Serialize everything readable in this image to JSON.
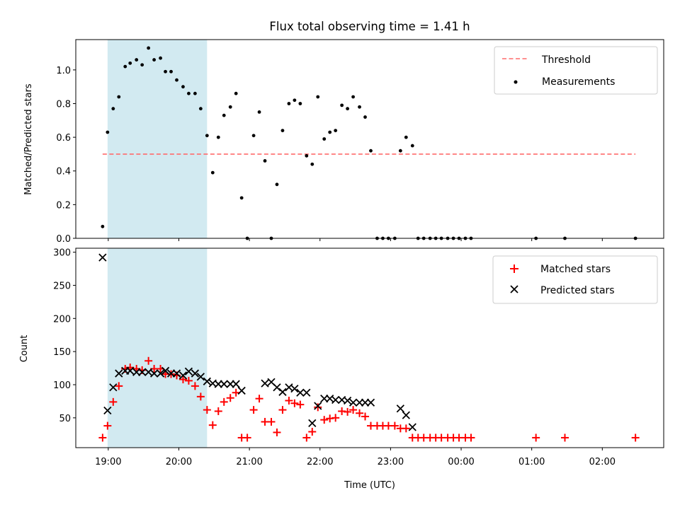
{
  "figure": {
    "title": "Flux total observing time = 1.41 h",
    "xlabel": "Time (UTC)"
  },
  "colors": {
    "shade": "#add8e6",
    "threshold": "#ff6b6b",
    "measurements": "#000000",
    "matched": "#ff0000",
    "predicted": "#000000"
  },
  "chart_data": [
    {
      "type": "scatter",
      "title": "Flux total observing time = 1.41 h",
      "xlabel": "",
      "ylabel": "Matched/Predicted stars",
      "x_unit": "hours since 19:00 UTC",
      "xlim": [
        -0.46,
        7.87
      ],
      "ylim": [
        0,
        1.18
      ],
      "x_ticks": [
        "19:00",
        "20:00",
        "21:00",
        "22:00",
        "23:00",
        "00:00",
        "01:00",
        "02:00"
      ],
      "y_ticks": [
        "0.0",
        "0.2",
        "0.4",
        "0.6",
        "0.8",
        "1.0"
      ],
      "shaded_span": [
        -0.01,
        1.4
      ],
      "legend": {
        "placement": "upper right",
        "entries": [
          "Threshold",
          "Measurements"
        ]
      },
      "series": [
        {
          "name": "Threshold",
          "kind": "dashed-line",
          "x": [
            -0.08,
            7.47
          ],
          "y": [
            0.5,
            0.5
          ]
        },
        {
          "name": "Measurements",
          "kind": "dot",
          "x": [
            -0.08,
            -0.01,
            0.07,
            0.15,
            0.24,
            0.31,
            0.4,
            0.48,
            0.57,
            0.65,
            0.74,
            0.81,
            0.89,
            0.97,
            1.06,
            1.14,
            1.23,
            1.31,
            1.4,
            1.48,
            1.56,
            1.64,
            1.73,
            1.81,
            1.89,
            1.97,
            2.06,
            2.14,
            2.22,
            2.31,
            2.39,
            2.47,
            2.56,
            2.64,
            2.72,
            2.81,
            2.89,
            2.97,
            3.06,
            3.14,
            3.22,
            3.31,
            3.39,
            3.47,
            3.56,
            3.64,
            3.72,
            3.81,
            3.89,
            3.97,
            4.06,
            4.14,
            4.22,
            4.31,
            4.39,
            4.47,
            4.56,
            4.64,
            4.72,
            4.81,
            4.89,
            4.97,
            5.06,
            5.14,
            6.06,
            6.47,
            7.47
          ],
          "y": [
            0.07,
            0.63,
            0.77,
            0.84,
            1.02,
            1.04,
            1.06,
            1.03,
            1.13,
            1.06,
            1.07,
            0.99,
            0.99,
            0.94,
            0.9,
            0.86,
            0.86,
            0.77,
            0.61,
            0.39,
            0.6,
            0.73,
            0.78,
            0.86,
            0.24,
            0.0,
            0.61,
            0.75,
            0.46,
            0.0,
            0.32,
            0.64,
            0.8,
            0.82,
            0.8,
            0.49,
            0.44,
            0.84,
            0.59,
            0.63,
            0.64,
            0.79,
            0.77,
            0.84,
            0.78,
            0.72,
            0.52,
            0.0,
            0.0,
            0.0,
            0.0,
            0.52,
            0.6,
            0.55,
            0.0,
            0.0,
            0.0,
            0.0,
            0.0,
            0.0,
            0.0,
            0.0,
            0.0,
            0.0,
            0.0,
            0.0,
            0.0
          ]
        }
      ]
    },
    {
      "type": "scatter",
      "title": "",
      "xlabel": "Time (UTC)",
      "ylabel": "Count",
      "x_unit": "hours since 19:00 UTC",
      "xlim": [
        -0.46,
        7.87
      ],
      "ylim": [
        5,
        306
      ],
      "x_ticks": [
        "19:00",
        "20:00",
        "21:00",
        "22:00",
        "23:00",
        "00:00",
        "01:00",
        "02:00"
      ],
      "y_ticks": [
        "50",
        "100",
        "150",
        "200",
        "250",
        "300"
      ],
      "shaded_span": [
        -0.01,
        1.4
      ],
      "legend": {
        "placement": "upper right",
        "entries": [
          "Matched stars",
          "Predicted stars"
        ]
      },
      "series": [
        {
          "name": "Matched stars",
          "marker": "plus",
          "x": [
            -0.08,
            -0.01,
            0.07,
            0.15,
            0.24,
            0.31,
            0.4,
            0.48,
            0.57,
            0.65,
            0.74,
            0.81,
            0.89,
            0.97,
            1.06,
            1.14,
            1.23,
            1.31,
            1.4,
            1.48,
            1.56,
            1.64,
            1.73,
            1.81,
            1.89,
            1.97,
            2.06,
            2.14,
            2.22,
            2.31,
            2.39,
            2.47,
            2.56,
            2.64,
            2.72,
            2.81,
            2.89,
            2.97,
            3.06,
            3.14,
            3.22,
            3.31,
            3.39,
            3.47,
            3.56,
            3.64,
            3.72,
            3.81,
            3.89,
            3.97,
            4.06,
            4.14,
            4.22,
            4.31,
            4.39,
            4.47,
            4.56,
            4.64,
            4.72,
            4.81,
            4.89,
            4.97,
            5.06,
            5.14,
            6.06,
            6.47,
            7.47
          ],
          "y": [
            20,
            38,
            74,
            98,
            124,
            126,
            124,
            122,
            136,
            124,
            124,
            116,
            116,
            114,
            108,
            106,
            98,
            82,
            62,
            39,
            60,
            74,
            80,
            88,
            20,
            20,
            62,
            79,
            44,
            44,
            28,
            62,
            76,
            72,
            70,
            20,
            29,
            66,
            47,
            49,
            50,
            60,
            59,
            62,
            57,
            52,
            38,
            38,
            38,
            38,
            38,
            34,
            34,
            20,
            20,
            20,
            20,
            20,
            20,
            20,
            20,
            20,
            20,
            20,
            20,
            20,
            20
          ]
        },
        {
          "name": "Predicted stars",
          "marker": "x",
          "x": [
            -0.08,
            -0.01,
            0.07,
            0.15,
            0.24,
            0.31,
            0.4,
            0.48,
            0.57,
            0.65,
            0.74,
            0.81,
            0.89,
            0.97,
            1.06,
            1.14,
            1.23,
            1.31,
            1.4,
            1.48,
            1.56,
            1.64,
            1.73,
            1.81,
            1.89,
            2.22,
            2.31,
            2.39,
            2.47,
            2.56,
            2.64,
            2.72,
            2.81,
            2.89,
            2.97,
            3.06,
            3.14,
            3.22,
            3.31,
            3.39,
            3.47,
            3.56,
            3.64,
            3.72,
            4.14,
            4.22,
            4.31
          ],
          "y": [
            292,
            61,
            96,
            117,
            121,
            121,
            119,
            119,
            119,
            117,
            117,
            121,
            117,
            117,
            114,
            120,
            117,
            112,
            105,
            102,
            101,
            101,
            101,
            101,
            91,
            102,
            104,
            96,
            89,
            96,
            94,
            88,
            88,
            42,
            68,
            79,
            79,
            77,
            77,
            76,
            73,
            73,
            73,
            73,
            64,
            54,
            36
          ]
        }
      ]
    }
  ]
}
